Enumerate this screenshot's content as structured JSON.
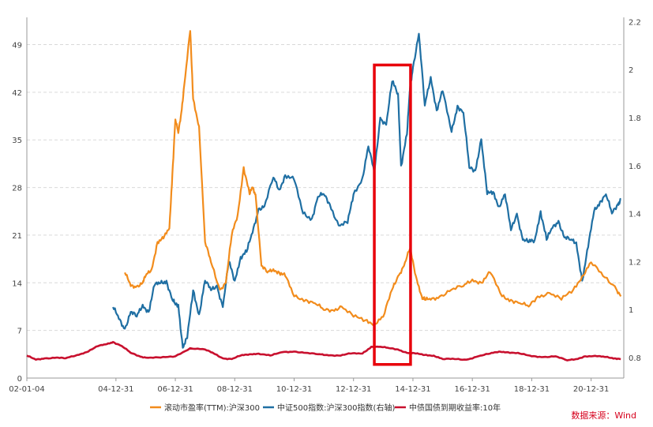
{
  "chart_data": {
    "type": "line",
    "x_tick_labels": [
      "02-01-04",
      "04-12-31",
      "06-12-31",
      "08-12-31",
      "10-12-31",
      "12-12-31",
      "14-12-31",
      "16-12-31",
      "18-12-31",
      "20-12-31"
    ],
    "x_tick_years": [
      2002.0,
      2005.0,
      2007.0,
      2009.0,
      2011.0,
      2013.0,
      2015.0,
      2017.0,
      2019.0,
      2021.0
    ],
    "xlim": [
      2002.0,
      2022.1
    ],
    "y_left": {
      "ticks": [
        0,
        7,
        14,
        21,
        28,
        35,
        42,
        49
      ],
      "ylim": [
        0,
        53
      ]
    },
    "y_right": {
      "ticks": [
        0.8,
        1.0,
        1.2,
        1.4,
        1.6,
        1.8,
        2.0,
        2.2
      ],
      "ylim": [
        0.714,
        2.218
      ]
    },
    "series": [
      {
        "name": "滚动市盈率(TTM):沪深300",
        "axis": "left",
        "color": "#f28c1c",
        "x": [
          2005.3,
          2005.5,
          2005.7,
          2005.9,
          2006.0,
          2006.2,
          2006.4,
          2006.6,
          2006.8,
          2006.9,
          2007.0,
          2007.1,
          2007.2,
          2007.3,
          2007.5,
          2007.6,
          2007.8,
          2008.0,
          2008.2,
          2008.5,
          2008.7,
          2008.9,
          2009.1,
          2009.3,
          2009.5,
          2009.6,
          2009.7,
          2009.9,
          2010.1,
          2010.3,
          2010.5,
          2010.7,
          2011.0,
          2011.4,
          2011.7,
          2012.0,
          2012.3,
          2012.6,
          2013.0,
          2013.4,
          2013.7,
          2014.0,
          2014.3,
          2014.5,
          2014.7,
          2014.9,
          2015.1,
          2015.3,
          2015.4,
          2015.6,
          2015.9,
          2016.3,
          2016.7,
          2017.0,
          2017.3,
          2017.6,
          2018.0,
          2018.3,
          2018.6,
          2018.9,
          2019.2,
          2019.6,
          2020.0,
          2020.4,
          2020.7,
          2021.0,
          2021.4,
          2021.8,
          2022.0
        ],
        "y": [
          15.5,
          13.5,
          13.5,
          14.0,
          15.0,
          16.0,
          20.0,
          20.5,
          22.0,
          30.0,
          38.0,
          36.0,
          39.0,
          43.0,
          51.0,
          41.0,
          37.0,
          20.0,
          17.0,
          13.0,
          14.0,
          21.0,
          24.0,
          31.0,
          27.0,
          28.0,
          27.0,
          16.5,
          15.5,
          16.0,
          15.5,
          15.0,
          12.0,
          11.5,
          11.0,
          10.0,
          10.0,
          10.5,
          9.0,
          8.5,
          8.0,
          9.0,
          13.0,
          15.0,
          16.5,
          19.0,
          15.0,
          12.0,
          11.5,
          11.5,
          12.0,
          13.0,
          13.5,
          14.5,
          14.0,
          15.5,
          12.0,
          11.5,
          11.0,
          10.5,
          12.0,
          12.5,
          11.5,
          13.0,
          15.0,
          17.0,
          15.0,
          13.5,
          12.0
        ]
      },
      {
        "name": "中证500指数:沪深300指数(右轴)",
        "axis": "right",
        "color": "#1f6fa3",
        "x": [
          2004.9,
          2005.1,
          2005.3,
          2005.5,
          2005.7,
          2005.9,
          2006.1,
          2006.3,
          2006.5,
          2006.7,
          2006.9,
          2007.0,
          2007.1,
          2007.25,
          2007.4,
          2007.6,
          2007.8,
          2008.0,
          2008.2,
          2008.4,
          2008.6,
          2008.8,
          2009.0,
          2009.2,
          2009.4,
          2009.6,
          2009.8,
          2010.0,
          2010.3,
          2010.5,
          2010.7,
          2011.0,
          2011.3,
          2011.6,
          2011.8,
          2012.0,
          2012.2,
          2012.5,
          2012.8,
          2013.0,
          2013.3,
          2013.5,
          2013.7,
          2013.9,
          2014.1,
          2014.3,
          2014.5,
          2014.6,
          2014.8,
          2014.9,
          2015.0,
          2015.2,
          2015.4,
          2015.6,
          2015.8,
          2016.0,
          2016.3,
          2016.5,
          2016.7,
          2016.9,
          2017.1,
          2017.3,
          2017.5,
          2017.7,
          2017.9,
          2018.1,
          2018.3,
          2018.5,
          2018.7,
          2018.9,
          2019.1,
          2019.3,
          2019.5,
          2019.7,
          2019.9,
          2020.1,
          2020.3,
          2020.5,
          2020.7,
          2020.9,
          2021.1,
          2021.3,
          2021.5,
          2021.7,
          2021.9,
          2022.0
        ],
        "y": [
          1.01,
          0.96,
          0.92,
          0.99,
          0.97,
          1.02,
          0.99,
          1.1,
          1.11,
          1.12,
          1.04,
          1.02,
          1.02,
          0.84,
          0.88,
          1.08,
          0.98,
          1.12,
          1.08,
          1.1,
          1.01,
          1.2,
          1.12,
          1.22,
          1.24,
          1.32,
          1.42,
          1.43,
          1.55,
          1.5,
          1.56,
          1.54,
          1.4,
          1.38,
          1.47,
          1.48,
          1.44,
          1.35,
          1.36,
          1.48,
          1.55,
          1.68,
          1.57,
          1.8,
          1.77,
          1.95,
          1.9,
          1.6,
          1.73,
          1.92,
          2.01,
          2.15,
          1.85,
          1.97,
          1.83,
          1.91,
          1.74,
          1.85,
          1.82,
          1.59,
          1.58,
          1.71,
          1.48,
          1.49,
          1.43,
          1.48,
          1.33,
          1.4,
          1.29,
          1.28,
          1.29,
          1.41,
          1.29,
          1.34,
          1.37,
          1.3,
          1.29,
          1.28,
          1.12,
          1.26,
          1.41,
          1.45,
          1.48,
          1.4,
          1.44,
          1.46
        ]
      },
      {
        "name": "中债国债到期收益率:10年",
        "axis": "left",
        "color": "#c8102e",
        "x": [
          2002.0,
          2002.3,
          2002.6,
          2003.0,
          2003.3,
          2003.7,
          2004.0,
          2004.4,
          2004.7,
          2004.9,
          2005.2,
          2005.5,
          2005.8,
          2006.0,
          2006.5,
          2007.0,
          2007.5,
          2008.0,
          2008.3,
          2008.6,
          2008.9,
          2009.2,
          2009.5,
          2009.8,
          2010.2,
          2010.6,
          2011.0,
          2011.4,
          2011.8,
          2012.1,
          2012.5,
          2012.9,
          2013.3,
          2013.6,
          2013.9,
          2014.2,
          2014.5,
          2014.8,
          2015.1,
          2015.4,
          2015.7,
          2016.0,
          2016.4,
          2016.8,
          2017.2,
          2017.6,
          2017.9,
          2018.2,
          2018.6,
          2019.0,
          2019.4,
          2019.8,
          2020.2,
          2020.5,
          2020.8,
          2021.2,
          2021.5,
          2021.8,
          2022.0
        ],
        "y": [
          3.3,
          2.7,
          2.9,
          3.0,
          2.9,
          3.4,
          3.8,
          4.7,
          5.0,
          5.3,
          4.7,
          3.7,
          3.2,
          3.0,
          3.0,
          3.2,
          4.4,
          4.2,
          3.6,
          2.9,
          2.8,
          3.3,
          3.5,
          3.6,
          3.3,
          3.8,
          3.9,
          3.7,
          3.5,
          3.4,
          3.3,
          3.6,
          3.6,
          4.6,
          4.6,
          4.4,
          4.2,
          3.7,
          3.6,
          3.4,
          3.3,
          2.8,
          2.8,
          2.7,
          3.2,
          3.6,
          3.9,
          3.8,
          3.6,
          3.2,
          3.1,
          3.2,
          2.6,
          2.8,
          3.2,
          3.2,
          3.1,
          2.9,
          2.8
        ]
      }
    ],
    "grid": true,
    "legend_position": "bottom",
    "highlight_box": {
      "x_range": [
        2013.7,
        2014.92
      ],
      "y_range": [
        2.0,
        46.0
      ],
      "color": "#e8000b"
    }
  },
  "source_text": "数据来源：Wind"
}
